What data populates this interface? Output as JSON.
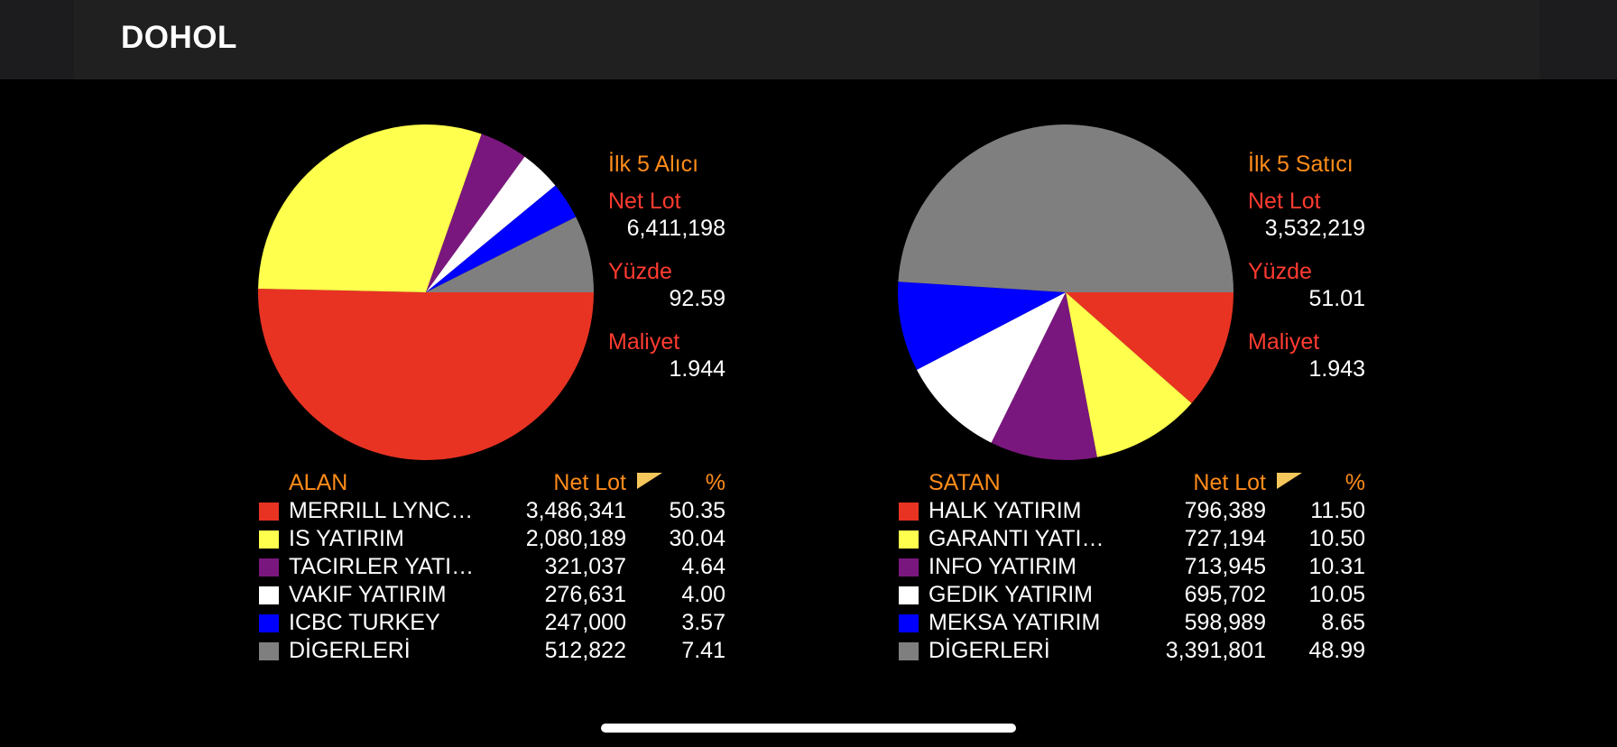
{
  "header": {
    "title": "DOHOL"
  },
  "buyers": {
    "stats": {
      "heading": "İlk 5 Alıcı",
      "net_lot_label": "Net Lot",
      "net_lot_value": "6,411,198",
      "percent_label": "Yüzde",
      "percent_value": "92.59",
      "cost_label": "Maliyet",
      "cost_value": "1.944"
    },
    "legend_header": {
      "name": "ALAN",
      "net_lot": "Net Lot",
      "pct": "%"
    },
    "rows": [
      {
        "name": "MERRILL LYNC…",
        "net_lot": "3,486,341",
        "pct": "50.35",
        "color": "#e83323"
      },
      {
        "name": "IS YATIRIM",
        "net_lot": "2,080,189",
        "pct": "30.04",
        "color": "#ffff4d"
      },
      {
        "name": "TACIRLER YATI…",
        "net_lot": "321,037",
        "pct": "4.64",
        "color": "#7a177e"
      },
      {
        "name": "VAKIF YATIRIM",
        "net_lot": "276,631",
        "pct": "4.00",
        "color": "#ffffff"
      },
      {
        "name": "ICBC TURKEY",
        "net_lot": "247,000",
        "pct": "3.57",
        "color": "#0000ff"
      },
      {
        "name": "DİGERLERİ",
        "net_lot": "512,822",
        "pct": "7.41",
        "color": "#7f7f7f"
      }
    ]
  },
  "sellers": {
    "stats": {
      "heading": "İlk 5 Satıcı",
      "net_lot_label": "Net Lot",
      "net_lot_value": "3,532,219",
      "percent_label": "Yüzde",
      "percent_value": "51.01",
      "cost_label": "Maliyet",
      "cost_value": "1.943"
    },
    "legend_header": {
      "name": "SATAN",
      "net_lot": "Net Lot",
      "pct": "%"
    },
    "rows": [
      {
        "name": "HALK YATIRIM",
        "net_lot": "796,389",
        "pct": "11.50",
        "color": "#e83323"
      },
      {
        "name": "GARANTI YATI…",
        "net_lot": "727,194",
        "pct": "10.50",
        "color": "#ffff4d"
      },
      {
        "name": "INFO YATIRIM",
        "net_lot": "713,945",
        "pct": "10.31",
        "color": "#7a177e"
      },
      {
        "name": "GEDIK YATIRIM",
        "net_lot": "695,702",
        "pct": "10.05",
        "color": "#ffffff"
      },
      {
        "name": "MEKSA YATIRIM",
        "net_lot": "598,989",
        "pct": "8.65",
        "color": "#0000ff"
      },
      {
        "name": "DİGERLERİ",
        "net_lot": "3,391,801",
        "pct": "48.99",
        "color": "#7f7f7f"
      }
    ]
  },
  "chart_data": [
    {
      "type": "pie",
      "title": "İlk 5 Alıcı",
      "categories": [
        "MERRILL LYNC…",
        "IS YATIRIM",
        "TACIRLER YATI…",
        "VAKIF YATIRIM",
        "ICBC TURKEY",
        "DİGERLERİ"
      ],
      "values": [
        50.35,
        30.04,
        4.64,
        4.0,
        3.57,
        7.41
      ],
      "colors": [
        "#e83323",
        "#ffff4d",
        "#7a177e",
        "#ffffff",
        "#0000ff",
        "#7f7f7f"
      ]
    },
    {
      "type": "pie",
      "title": "İlk 5 Satıcı",
      "categories": [
        "HALK YATIRIM",
        "GARANTI YATI…",
        "INFO YATIRIM",
        "GEDIK YATIRIM",
        "MEKSA YATIRIM",
        "DİGERLERİ"
      ],
      "values": [
        11.5,
        10.5,
        10.31,
        10.05,
        8.65,
        48.99
      ],
      "colors": [
        "#e83323",
        "#ffff4d",
        "#7a177e",
        "#ffffff",
        "#0000ff",
        "#7f7f7f"
      ]
    }
  ]
}
